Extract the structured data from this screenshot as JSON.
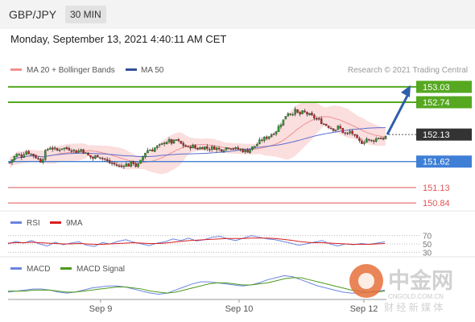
{
  "header": {
    "symbol": "GBP/JPY",
    "timeframe": "30 MIN"
  },
  "datetime": "Monday, September 13, 2021 4:40:11 AM CET",
  "legend": {
    "bollinger": "MA 20 + Bollinger Bands",
    "ma50": "MA 50",
    "rsi": "RSI",
    "rsi_ma": "9MA",
    "macd": "MACD",
    "macd_signal": "MACD Signal"
  },
  "credit": "Research © 2021 Trading Central",
  "watermark": {
    "logo_text": "中金网",
    "url": "CNGOLD.COM.CN",
    "slogan": "财 经 新 媒 体"
  },
  "colors": {
    "bull": "#2e9e2e",
    "bear": "#c62828",
    "resistance": "#55a820",
    "support": "#3f7fd6",
    "minor": "#e05555",
    "bollinger": "#f9d3d3",
    "ma20": "#f09090",
    "ma50": "#5a6ed0",
    "arrow": "#2f5fa8",
    "rsi": "#6b85e0",
    "rsi_ma": "#d82020",
    "macd": "#6b85e0",
    "macd_signal": "#4a9a1a"
  },
  "chart_data": [
    {
      "type": "candlestick",
      "x_labels": [
        "Sep 9",
        "Sep 10",
        "Sep 12"
      ],
      "ylim": [
        150.75,
        153.15
      ],
      "close_path": [
        [
          0,
          151.6
        ],
        [
          5,
          151.7
        ],
        [
          10,
          151.76
        ],
        [
          15,
          151.72
        ],
        [
          20,
          151.82
        ],
        [
          25,
          151.78
        ],
        [
          30,
          151.74
        ],
        [
          35,
          151.68
        ],
        [
          40,
          151.62
        ],
        [
          45,
          151.8
        ],
        [
          50,
          151.9
        ],
        [
          55,
          151.86
        ],
        [
          60,
          151.83
        ],
        [
          65,
          151.88
        ],
        [
          70,
          151.87
        ],
        [
          75,
          151.86
        ],
        [
          80,
          151.84
        ],
        [
          85,
          151.8
        ],
        [
          90,
          151.85
        ],
        [
          95,
          151.78
        ],
        [
          100,
          151.72
        ],
        [
          105,
          151.68
        ],
        [
          110,
          151.74
        ],
        [
          115,
          151.7
        ],
        [
          120,
          151.66
        ],
        [
          125,
          151.6
        ],
        [
          130,
          151.58
        ],
        [
          135,
          151.55
        ],
        [
          140,
          151.52
        ],
        [
          145,
          151.58
        ],
        [
          150,
          151.55
        ],
        [
          155,
          151.62
        ],
        [
          160,
          151.52
        ],
        [
          165,
          151.62
        ],
        [
          170,
          151.78
        ],
        [
          175,
          151.85
        ],
        [
          180,
          151.84
        ],
        [
          185,
          151.9
        ],
        [
          190,
          151.92
        ],
        [
          195,
          151.98
        ],
        [
          200,
          152.02
        ],
        [
          205,
          151.97
        ],
        [
          210,
          152.03
        ],
        [
          215,
          151.96
        ],
        [
          220,
          151.92
        ],
        [
          225,
          151.88
        ],
        [
          230,
          151.92
        ],
        [
          235,
          151.86
        ],
        [
          240,
          151.88
        ],
        [
          245,
          151.9
        ],
        [
          250,
          151.86
        ],
        [
          255,
          151.88
        ],
        [
          260,
          151.88
        ],
        [
          265,
          151.84
        ],
        [
          270,
          151.86
        ],
        [
          275,
          151.9
        ],
        [
          280,
          151.88
        ],
        [
          285,
          151.86
        ],
        [
          290,
          151.85
        ],
        [
          295,
          151.82
        ],
        [
          300,
          151.82
        ],
        [
          305,
          151.88
        ],
        [
          310,
          151.92
        ],
        [
          315,
          152.0
        ],
        [
          320,
          152.05
        ],
        [
          325,
          152.08
        ],
        [
          330,
          152.14
        ],
        [
          335,
          152.18
        ],
        [
          340,
          152.3
        ],
        [
          345,
          152.4
        ],
        [
          350,
          152.55
        ],
        [
          355,
          152.52
        ],
        [
          360,
          152.58
        ],
        [
          365,
          152.5
        ],
        [
          370,
          152.56
        ],
        [
          375,
          152.52
        ],
        [
          380,
          152.48
        ],
        [
          385,
          152.44
        ],
        [
          390,
          152.4
        ],
        [
          395,
          152.34
        ],
        [
          400,
          152.3
        ],
        [
          405,
          152.26
        ],
        [
          410,
          152.22
        ],
        [
          415,
          152.28
        ],
        [
          420,
          152.18
        ],
        [
          425,
          152.12
        ],
        [
          430,
          152.2
        ],
        [
          435,
          152.08
        ],
        [
          440,
          152.0
        ],
        [
          445,
          151.98
        ],
        [
          450,
          152.05
        ],
        [
          455,
          152.0
        ],
        [
          460,
          152.03
        ],
        [
          465,
          152.08
        ],
        [
          470,
          152.05
        ],
        [
          475,
          152.1
        ]
      ],
      "series": [
        {
          "name": "MA 20 + Bollinger Bands"
        },
        {
          "name": "MA 50"
        }
      ],
      "levels": [
        {
          "value": 153.03,
          "label": "153.03",
          "kind": "resistance-2"
        },
        {
          "value": 152.74,
          "label": "152.74",
          "kind": "resistance-1"
        },
        {
          "value": 152.13,
          "label": "152.13",
          "kind": "current-price"
        },
        {
          "value": 151.62,
          "label": "151.62",
          "kind": "pivot"
        },
        {
          "value": 151.13,
          "label": "151.13",
          "kind": "support-1"
        },
        {
          "value": 150.84,
          "label": "150.84",
          "kind": "support-2"
        }
      ],
      "annotation": {
        "type": "arrow",
        "from": 152.13,
        "to": 153.03,
        "direction": "up"
      }
    },
    {
      "type": "line",
      "title": "RSI",
      "yticks": [
        30,
        50,
        70
      ],
      "series": [
        {
          "name": "RSI",
          "values": [
            50,
            56,
            52,
            58,
            50,
            45,
            54,
            48,
            52,
            55,
            47,
            44,
            53,
            50,
            56,
            60,
            54,
            50,
            46,
            52,
            55,
            62,
            58,
            64,
            57,
            60,
            66,
            68,
            62,
            58,
            64,
            70,
            66,
            62,
            60,
            56,
            52,
            47,
            50,
            54,
            58,
            50,
            45,
            50,
            48,
            51,
            49,
            52,
            55
          ]
        },
        {
          "name": "9MA",
          "values": [
            52,
            53,
            53,
            54,
            53,
            52,
            51,
            50,
            50,
            51,
            50,
            49,
            49,
            50,
            51,
            52,
            53,
            52,
            51,
            51,
            52,
            54,
            56,
            58,
            59,
            60,
            61,
            62,
            63,
            63,
            63,
            64,
            64,
            64,
            63,
            61,
            59,
            56,
            54,
            53,
            53,
            52,
            51,
            50,
            49,
            49,
            49,
            50,
            51
          ]
        }
      ]
    },
    {
      "type": "line",
      "title": "MACD",
      "series": [
        {
          "name": "MACD",
          "values": [
            -0.02,
            -0.01,
            0.0,
            0.01,
            0.01,
            0.0,
            -0.02,
            -0.03,
            -0.02,
            0.0,
            0.02,
            0.03,
            0.04,
            0.04,
            0.03,
            0.01,
            -0.01,
            -0.03,
            -0.04,
            -0.03,
            0.0,
            0.03,
            0.06,
            0.08,
            0.08,
            0.07,
            0.06,
            0.05,
            0.04,
            0.05,
            0.07,
            0.1,
            0.12,
            0.14,
            0.13,
            0.1,
            0.07,
            0.04,
            0.02,
            0.0,
            -0.02,
            -0.03,
            -0.03,
            -0.02,
            -0.01,
            0.0
          ]
        },
        {
          "name": "MACD Signal",
          "values": [
            -0.01,
            -0.01,
            -0.01,
            0.0,
            0.0,
            0.0,
            -0.01,
            -0.02,
            -0.02,
            -0.01,
            0.0,
            0.01,
            0.02,
            0.03,
            0.03,
            0.02,
            0.01,
            -0.01,
            -0.02,
            -0.03,
            -0.02,
            0.0,
            0.02,
            0.04,
            0.06,
            0.07,
            0.07,
            0.06,
            0.05,
            0.05,
            0.06,
            0.07,
            0.09,
            0.11,
            0.12,
            0.12,
            0.1,
            0.08,
            0.06,
            0.04,
            0.02,
            0.0,
            -0.01,
            -0.02,
            -0.02,
            -0.01
          ]
        }
      ]
    }
  ]
}
